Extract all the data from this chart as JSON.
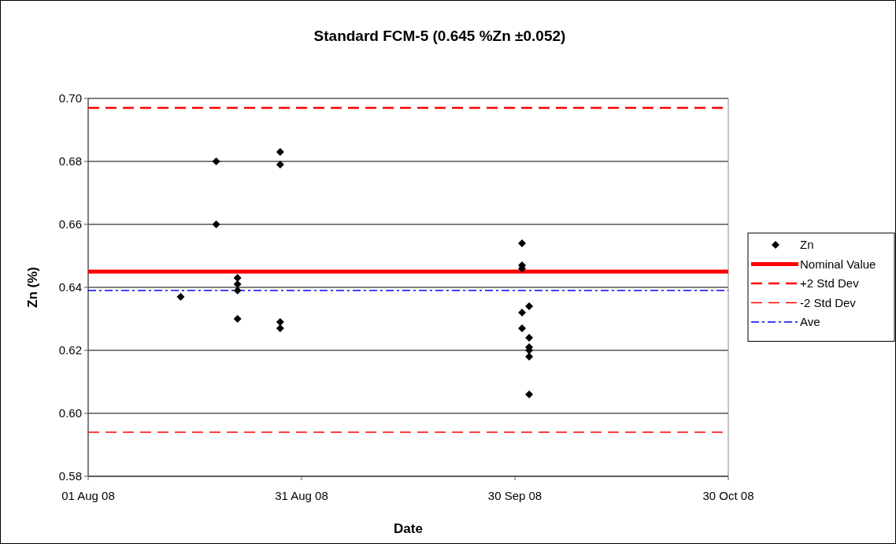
{
  "chart_data": {
    "type": "scatter",
    "title": "Standard FCM-5 (0.645 %Zn ±0.052)",
    "xlabel": "Date",
    "ylabel": "Zn (%)",
    "xlim": [
      "2008-08-01",
      "2008-10-30"
    ],
    "xticks": [
      {
        "value": "2008-08-01",
        "label": "01 Aug 08"
      },
      {
        "value": "2008-08-31",
        "label": "31 Aug 08"
      },
      {
        "value": "2008-09-30",
        "label": "30 Sep 08"
      },
      {
        "value": "2008-10-30",
        "label": "30 Oct 08"
      }
    ],
    "ylim": [
      0.58,
      0.7
    ],
    "yticks": [
      {
        "value": 0.58,
        "label": "0.58"
      },
      {
        "value": 0.6,
        "label": "0.60"
      },
      {
        "value": 0.62,
        "label": "0.62"
      },
      {
        "value": 0.64,
        "label": "0.64"
      },
      {
        "value": 0.66,
        "label": "0.66"
      },
      {
        "value": 0.68,
        "label": "0.68"
      },
      {
        "value": 0.7,
        "label": "0.70"
      }
    ],
    "grid": "y",
    "legend": "right",
    "series": [
      {
        "name": "Zn",
        "marker": "diamond",
        "color": "#000000",
        "x": [
          "2008-08-14",
          "2008-08-19",
          "2008-08-19",
          "2008-08-22",
          "2008-08-22",
          "2008-08-22",
          "2008-08-22",
          "2008-08-28",
          "2008-08-28",
          "2008-08-28",
          "2008-08-28",
          "2008-10-01",
          "2008-10-01",
          "2008-10-01",
          "2008-10-01",
          "2008-10-01",
          "2008-10-02",
          "2008-10-02",
          "2008-10-02",
          "2008-10-02",
          "2008-10-02",
          "2008-10-02"
        ],
        "values": [
          0.637,
          0.68,
          0.66,
          0.643,
          0.641,
          0.639,
          0.63,
          0.683,
          0.679,
          0.629,
          0.627,
          0.654,
          0.647,
          0.646,
          0.632,
          0.627,
          0.634,
          0.624,
          0.621,
          0.62,
          0.618,
          0.606
        ]
      },
      {
        "name": "Nominal Value",
        "type": "line",
        "line_style": "solid",
        "color": "#ff0000",
        "x": [
          "2008-08-01",
          "2008-10-30"
        ],
        "values": [
          0.645,
          0.645
        ]
      },
      {
        "name": "+2 Std Dev",
        "type": "line",
        "line_style": "dashed",
        "color": "#ff0000",
        "x": [
          "2008-08-01",
          "2008-10-30"
        ],
        "values": [
          0.697,
          0.697
        ]
      },
      {
        "name": "-2 Std Dev",
        "type": "line",
        "line_style": "dashed",
        "color": "#ff0000",
        "x": [
          "2008-08-01",
          "2008-10-30"
        ],
        "values": [
          0.594,
          0.594
        ]
      },
      {
        "name": "Ave",
        "type": "line",
        "line_style": "dashdot",
        "color": "#0000ff",
        "x": [
          "2008-08-01",
          "2008-10-30"
        ],
        "values": [
          0.639,
          0.639
        ]
      }
    ]
  }
}
